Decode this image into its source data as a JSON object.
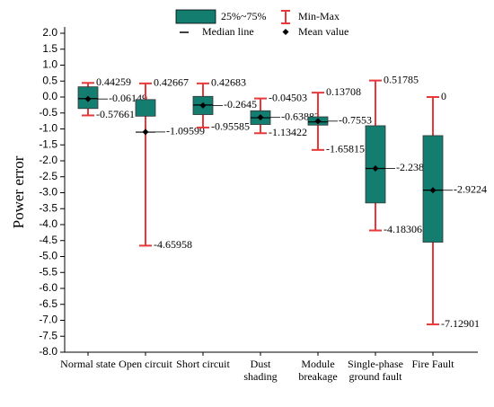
{
  "chart_data": {
    "type": "box",
    "y_label": "Power error",
    "categories": [
      "Normal state",
      "Open circuit",
      "Short circuit",
      "Dust shading",
      "Module breakage",
      "Single-phase ground fault",
      "Fire Fault"
    ],
    "max": [
      0.44259,
      0.42667,
      0.42683,
      -0.04503,
      0.13708,
      0.51785,
      0
    ],
    "q3": [
      0.32,
      -0.08,
      0.02,
      -0.43,
      -0.62,
      -0.9,
      -1.21
    ],
    "median": [
      -0.05,
      -1.1,
      -0.25,
      -0.65,
      -0.78,
      -2.24,
      -2.92
    ],
    "mean": [
      -0.06149,
      -1.09599,
      -0.2645,
      -0.63882,
      -0.7553,
      -2.23814,
      -2.9224
    ],
    "q1": [
      -0.36,
      -0.6,
      -0.55,
      -0.86,
      -0.88,
      -3.32,
      -4.55
    ],
    "min": [
      -0.57661,
      -4.65958,
      -0.95585,
      -1.13422,
      -1.65815,
      -4.18306,
      -7.12901
    ],
    "box_color": "#137d70",
    "whisker_color": "#e8383a",
    "legend": {
      "box": "25%~75%",
      "range": "Min-Max",
      "median": "Median line",
      "mean": "Mean value"
    },
    "ylim": [
      -8,
      2
    ],
    "yticks": [
      {
        "value": 2,
        "label": "2.0"
      },
      1.5,
      {
        "value": 1,
        "label": "1.0"
      },
      0.5,
      {
        "value": 0,
        "label": "0.0"
      },
      -0.5,
      {
        "value": -1,
        "label": "-1.0"
      },
      -1.5,
      {
        "value": -2,
        "label": "-2.0"
      },
      -2.5,
      {
        "value": -3,
        "label": "-3.0"
      },
      -3.5,
      {
        "value": -4,
        "label": "-4.0"
      },
      -4.5,
      {
        "value": -5,
        "label": "-5.0"
      },
      -5.5,
      {
        "value": -6,
        "label": "-6.0"
      },
      -6.5,
      {
        "value": -7,
        "label": "-7.0"
      },
      -7.5,
      {
        "value": -8,
        "label": "-8.0"
      }
    ]
  }
}
